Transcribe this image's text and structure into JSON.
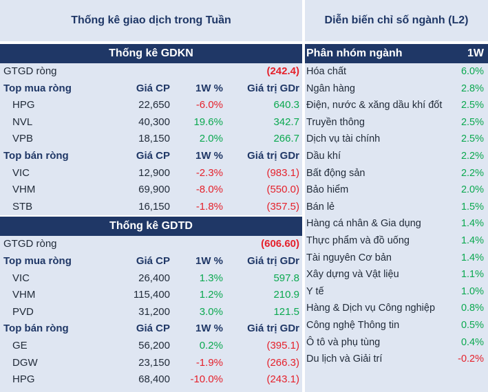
{
  "left_title": "Thống kê giao dịch trong Tuần",
  "right_title": "Diễn biến chỉ số ngành (L2)",
  "gdkn": {
    "band": "Thống kê GDKN",
    "net_label": "GTGD ròng",
    "net_value": "(242.4)",
    "buy": {
      "header": "Top mua ròng",
      "cols": [
        "Giá CP",
        "1W %",
        "Giá trị GDr"
      ],
      "rows": [
        {
          "ticker": "HPG",
          "price": "22,650",
          "chg": "-6.0%",
          "val": "640.3"
        },
        {
          "ticker": "NVL",
          "price": "40,300",
          "chg": "19.6%",
          "val": "342.7"
        },
        {
          "ticker": "VPB",
          "price": "18,150",
          "chg": "2.0%",
          "val": "266.7"
        }
      ]
    },
    "sell": {
      "header": "Top bán ròng",
      "cols": [
        "Giá CP",
        "1W %",
        "Giá trị GDr"
      ],
      "rows": [
        {
          "ticker": "VIC",
          "price": "12,900",
          "chg": "-2.3%",
          "val": "(983.1)"
        },
        {
          "ticker": "VHM",
          "price": "69,900",
          "chg": "-8.0%",
          "val": "(550.0)"
        },
        {
          "ticker": "STB",
          "price": "16,150",
          "chg": "-1.8%",
          "val": "(357.5)"
        }
      ]
    }
  },
  "gdtd": {
    "band": "Thống kê GDTD",
    "net_label": "GTGD ròng",
    "net_value": "(606.60)",
    "buy": {
      "header": "Top mua ròng",
      "cols": [
        "Giá CP",
        "1W %",
        "Giá trị GDr"
      ],
      "rows": [
        {
          "ticker": "VIC",
          "price": "26,400",
          "chg": "1.3%",
          "val": "597.8"
        },
        {
          "ticker": "VHM",
          "price": "115,400",
          "chg": "1.2%",
          "val": "210.9"
        },
        {
          "ticker": "PVD",
          "price": "31,200",
          "chg": "3.0%",
          "val": "121.5"
        }
      ]
    },
    "sell": {
      "header": "Top bán ròng",
      "cols": [
        "Giá CP",
        "1W %",
        "Giá trị GDr"
      ],
      "rows": [
        {
          "ticker": "GE",
          "price": "56,200",
          "chg": "0.2%",
          "val": "(395.1)"
        },
        {
          "ticker": "DGW",
          "price": "23,150",
          "chg": "-1.9%",
          "val": "(266.3)"
        },
        {
          "ticker": "HPG",
          "price": "68,400",
          "chg": "-10.0%",
          "val": "(243.1)"
        }
      ]
    }
  },
  "sectors": {
    "header_name": "Phân nhóm ngành",
    "header_val": "1W",
    "rows": [
      {
        "name": "Hóa chất",
        "val": "6.0%"
      },
      {
        "name": "Ngân hàng",
        "val": "2.8%"
      },
      {
        "name": "Điện, nước & xăng dầu khí đốt",
        "val": "2.5%"
      },
      {
        "name": "Truyền thông",
        "val": "2.5%"
      },
      {
        "name": "Dịch vụ tài chính",
        "val": "2.5%"
      },
      {
        "name": "Dầu khí",
        "val": "2.2%"
      },
      {
        "name": "Bất động sản",
        "val": "2.2%"
      },
      {
        "name": "Bảo hiểm",
        "val": "2.0%"
      },
      {
        "name": "Bán lẻ",
        "val": "1.5%"
      },
      {
        "name": "Hàng cá nhân & Gia dụng",
        "val": "1.4%"
      },
      {
        "name": "Thực phẩm và đồ uống",
        "val": "1.4%"
      },
      {
        "name": "Tài nguyên Cơ bản",
        "val": "1.4%"
      },
      {
        "name": "Xây dựng và Vật liệu",
        "val": "1.1%"
      },
      {
        "name": "Y tế",
        "val": "1.0%"
      },
      {
        "name": "Hàng & Dịch vụ Công nghiệp",
        "val": "0.8%"
      },
      {
        "name": "Công nghệ Thông tin",
        "val": "0.5%"
      },
      {
        "name": "Ô tô và phụ tùng",
        "val": "0.4%"
      },
      {
        "name": "Du lịch và Giải trí",
        "val": "-0.2%"
      }
    ]
  },
  "colors": {
    "navy": "#1f3766",
    "panel_bg": "#dfe6f2",
    "positive": "#0aa84f",
    "negative": "#e5212b"
  }
}
